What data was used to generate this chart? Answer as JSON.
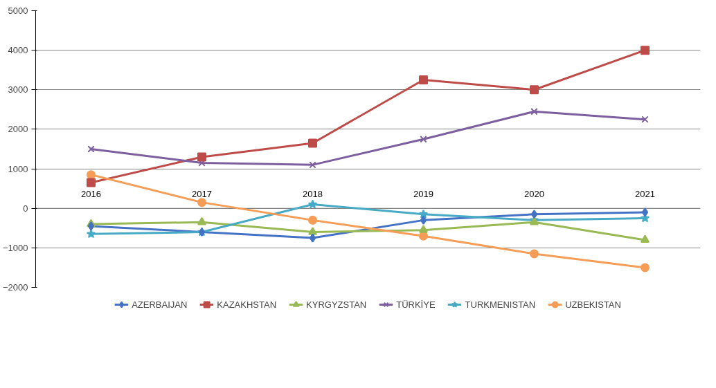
{
  "chart_data": {
    "type": "line",
    "categories": [
      "2016",
      "2017",
      "2018",
      "2019",
      "2020",
      "2021"
    ],
    "ylim": [
      -2000,
      5000
    ],
    "yticks": [
      -2000,
      -1000,
      0,
      1000,
      2000,
      3000,
      4000,
      5000
    ],
    "grid": "y",
    "legend": "bottom",
    "series": [
      {
        "name": "AZERBAIJAN",
        "color": "#4472c4",
        "marker": "diamond",
        "values": [
          -450,
          -600,
          -750,
          -300,
          -150,
          -100
        ]
      },
      {
        "name": "KAZAKHSTAN",
        "color": "#be4b48",
        "marker": "square",
        "values": [
          650,
          1300,
          1650,
          3250,
          3000,
          4000
        ]
      },
      {
        "name": "KYRGYZSTAN",
        "color": "#98b954",
        "marker": "triangle",
        "values": [
          -400,
          -350,
          -600,
          -550,
          -350,
          -800
        ]
      },
      {
        "name": "TÜRKİYE",
        "color": "#7d5fa0",
        "marker": "cross",
        "values": [
          1500,
          1150,
          1100,
          1750,
          2450,
          2250
        ]
      },
      {
        "name": "TURKMENISTAN",
        "color": "#46aac5",
        "marker": "star",
        "values": [
          -650,
          -600,
          100,
          -150,
          -300,
          -250
        ]
      },
      {
        "name": "UZBEKISTAN",
        "color": "#f59d56",
        "marker": "circle",
        "values": [
          850,
          150,
          -300,
          -700,
          -1150,
          -1500
        ]
      }
    ]
  }
}
